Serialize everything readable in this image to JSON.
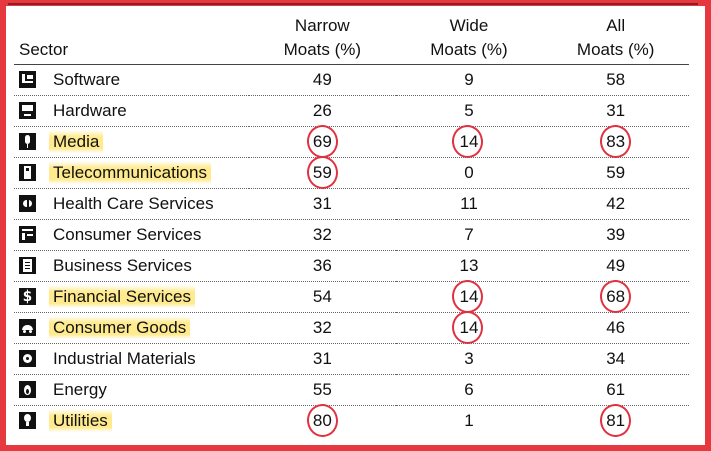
{
  "table": {
    "headers": {
      "sector": "Sector",
      "narrow_line1": "Narrow",
      "narrow_line2": "Moats (%)",
      "wide_line1": "Wide",
      "wide_line2": "Moats (%)",
      "all_line1": "All",
      "all_line2": "Moats (%)"
    },
    "rows": [
      {
        "sector": "Software",
        "icon": "software-icon",
        "narrow": "49",
        "wide": "9",
        "all": "58"
      },
      {
        "sector": "Hardware",
        "icon": "hardware-icon",
        "narrow": "26",
        "wide": "5",
        "all": "31"
      },
      {
        "sector": "Media",
        "icon": "media-icon",
        "narrow": "69",
        "wide": "14",
        "all": "83"
      },
      {
        "sector": "Telecommunications",
        "icon": "telecom-icon",
        "narrow": "59",
        "wide": "0",
        "all": "59"
      },
      {
        "sector": "Health Care Services",
        "icon": "health-care-icon",
        "narrow": "31",
        "wide": "11",
        "all": "42"
      },
      {
        "sector": "Consumer Services",
        "icon": "consumer-services-icon",
        "narrow": "32",
        "wide": "7",
        "all": "39"
      },
      {
        "sector": "Business Services",
        "icon": "business-services-icon",
        "narrow": "36",
        "wide": "13",
        "all": "49"
      },
      {
        "sector": "Financial Services",
        "icon": "financial-services-icon",
        "narrow": "54",
        "wide": "14",
        "all": "68"
      },
      {
        "sector": "Consumer Goods",
        "icon": "consumer-goods-icon",
        "narrow": "32",
        "wide": "14",
        "all": "46"
      },
      {
        "sector": "Industrial Materials",
        "icon": "industrial-materials-icon",
        "narrow": "31",
        "wide": "3",
        "all": "34"
      },
      {
        "sector": "Energy",
        "icon": "energy-icon",
        "narrow": "55",
        "wide": "6",
        "all": "61"
      },
      {
        "sector": "Utilities",
        "icon": "utilities-icon",
        "narrow": "80",
        "wide": "1",
        "all": "81"
      }
    ]
  },
  "annotations": {
    "highlight_color": "#ffe882",
    "circle_color": "#e03140",
    "frame_color": "#e5383f"
  }
}
